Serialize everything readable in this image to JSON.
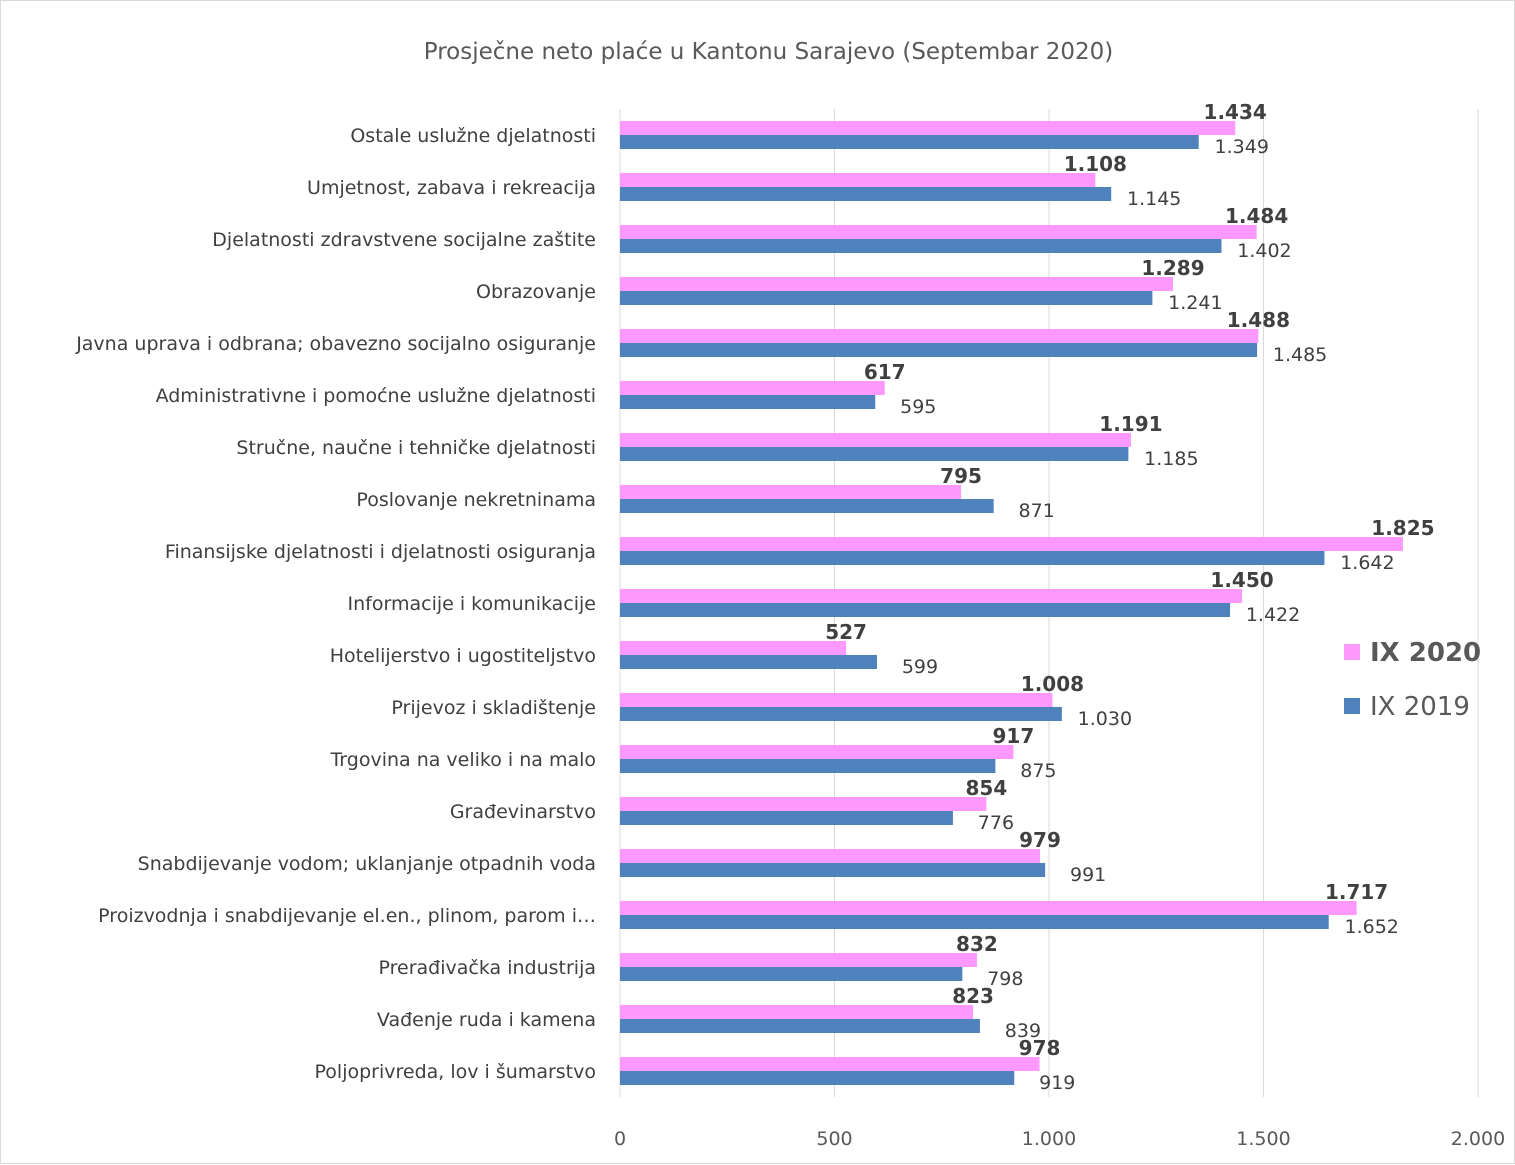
{
  "chart_data": {
    "type": "bar",
    "orientation": "horizontal",
    "title": "Prosječne neto plaće u Kantonu Sarajevo (Septembar 2020)",
    "categories": [
      "Ostale uslužne djelatnosti",
      "Umjetnost, zabava i rekreacija",
      "Djelatnosti zdravstvene socijalne zaštite",
      "Obrazovanje",
      "Javna uprava i odbrana; obavezno socijalno osiguranje",
      "Administrativne i pomoćne uslužne djelatnosti",
      "Stručne, naučne i tehničke djelatnosti",
      "Poslovanje nekretninama",
      "Finansijske djelatnosti i djelatnosti osiguranja",
      "Informacije i komunikacije",
      "Hotelijerstvo i ugostiteljstvo",
      "Prijevoz i skladištenje",
      "Trgovina na veliko i na malo",
      "Građevinarstvo",
      "Snabdijevanje vodom; uklanjanje otpadnih voda",
      "Proizvodnja i snabdijevanje el.en., plinom, parom i…",
      "Prerađivačka industrija",
      "Vađenje ruda i kamena",
      "Poljoprivreda, lov i šumarstvo"
    ],
    "series": [
      {
        "name": "IX 2020",
        "color": "#ff99ff",
        "values": [
          1434,
          1108,
          1484,
          1289,
          1488,
          617,
          1191,
          795,
          1825,
          1450,
          527,
          1008,
          917,
          854,
          979,
          1717,
          832,
          823,
          978
        ],
        "labels": [
          "1.434",
          "1.108",
          "1.484",
          "1.289",
          "1.488",
          "617",
          "1.191",
          "795",
          "1.825",
          "1.450",
          "527",
          "1.008",
          "917",
          "854",
          "979",
          "1.717",
          "832",
          "823",
          "978"
        ]
      },
      {
        "name": "IX 2019",
        "color": "#4f81bd",
        "values": [
          1349,
          1145,
          1402,
          1241,
          1485,
          595,
          1185,
          871,
          1642,
          1422,
          599,
          1030,
          875,
          776,
          991,
          1652,
          798,
          839,
          919
        ],
        "labels": [
          "1.349",
          "1.145",
          "1.402",
          "1.241",
          "1.485",
          "595",
          "1.185",
          "871",
          "1.642",
          "1.422",
          "599",
          "1.030",
          "875",
          "776",
          "991",
          "1.652",
          "798",
          "839",
          "919"
        ]
      }
    ],
    "xlim": [
      0,
      2000
    ],
    "x_ticks": [
      0,
      500,
      1000,
      1500,
      2000
    ],
    "x_tick_labels": [
      "0",
      "500",
      "1.000",
      "1.500",
      "2.000"
    ],
    "grid": true,
    "legend_position": "right"
  }
}
